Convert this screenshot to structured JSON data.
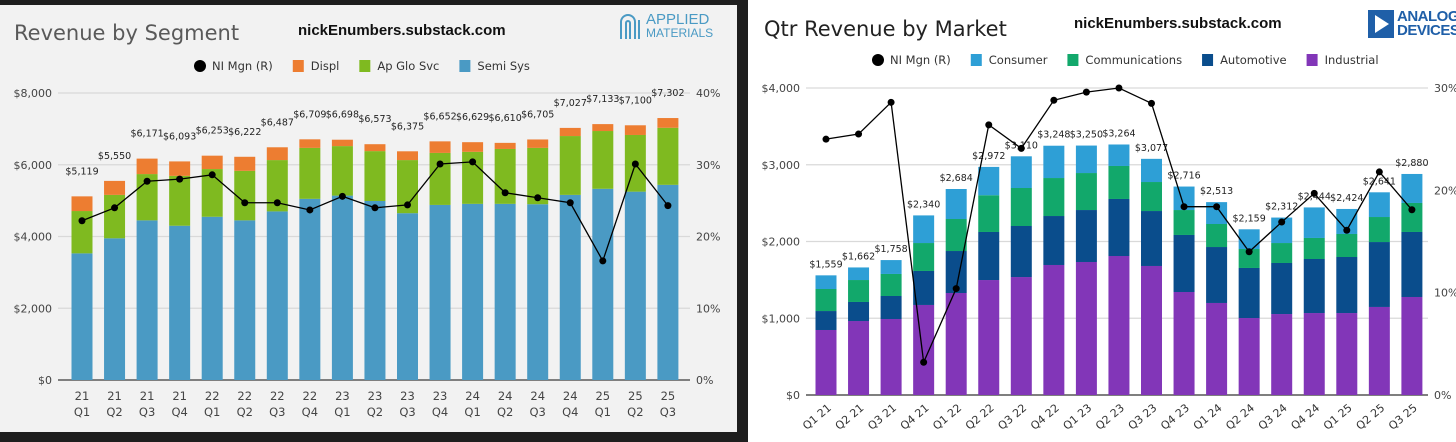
{
  "chart_data": [
    {
      "type": "bar",
      "stacked": true,
      "title": "Revenue by Segment",
      "watermark": "nickEnumbers.substack.com",
      "logo": "APPLIED MATERIALS",
      "categories": [
        "21 Q1",
        "21 Q2",
        "21 Q3",
        "21 Q4",
        "22 Q1",
        "22 Q2",
        "22 Q3",
        "22 Q4",
        "23 Q1",
        "23 Q2",
        "23 Q3",
        "23 Q4",
        "24 Q1",
        "24 Q2",
        "24 Q3",
        "24 Q4",
        "25 Q1",
        "25 Q2",
        "25 Q3"
      ],
      "series": [
        {
          "name": "Semi Sys",
          "color": "#4a9ac4",
          "values": [
            3530,
            3950,
            4450,
            4300,
            4550,
            4450,
            4700,
            5050,
            5140,
            4990,
            4650,
            4880,
            4910,
            4910,
            4900,
            5160,
            5330,
            5250,
            5440
          ]
        },
        {
          "name": "Ap Glo Svc",
          "color": "#7fba20",
          "values": [
            1180,
            1210,
            1290,
            1390,
            1330,
            1380,
            1430,
            1420,
            1380,
            1390,
            1480,
            1450,
            1450,
            1530,
            1570,
            1640,
            1610,
            1580,
            1590
          ]
        },
        {
          "name": "Displ",
          "color": "#ed7d31",
          "values": [
            409,
            390,
            431,
            403,
            373,
            392,
            357,
            239,
            178,
            193,
            245,
            322,
            269,
            170,
            235,
            227,
            193,
            270,
            272
          ]
        }
      ],
      "totals": [
        "$5,119",
        "$5,550",
        "$6,171",
        "$6,093",
        "$6,253",
        "$6,222",
        "$6,487",
        "$6,709",
        "$6,698",
        "$6,573",
        "$6,375",
        "$6,652",
        "$6,629",
        "$6,610",
        "$6,705",
        "$7,027",
        "$7,133",
        "$7,100",
        "$7,302"
      ],
      "total_values": [
        5119,
        5550,
        6171,
        6093,
        6253,
        6222,
        6487,
        6709,
        6698,
        6573,
        6375,
        6652,
        6629,
        6610,
        6705,
        7027,
        7133,
        7100,
        7302
      ],
      "line": {
        "name": "NI Mgn (R)",
        "color": "#000000",
        "values": [
          22.2,
          24.0,
          27.7,
          28.0,
          28.6,
          24.7,
          24.7,
          23.7,
          25.6,
          24.0,
          24.4,
          30.1,
          30.4,
          26.1,
          25.4,
          24.7,
          16.6,
          30.1,
          24.3
        ]
      },
      "legend_order": [
        "NI Mgn (R)",
        "Displ",
        "Ap Glo Svc",
        "Semi Sys"
      ],
      "ylim": [
        0,
        8000
      ],
      "yticks": [
        "$0",
        "$2,000",
        "$4,000",
        "$6,000",
        "$8,000"
      ],
      "y2lim": [
        0,
        40
      ],
      "y2ticks": [
        "0%",
        "10%",
        "20%",
        "30%",
        "40%"
      ],
      "grid": true,
      "legend": "top-center"
    },
    {
      "type": "bar",
      "stacked": true,
      "title": "Qtr Revenue by Market",
      "watermark": "nickEnumbers.substack.com",
      "logo": "ANALOG DEVICES",
      "categories": [
        "Q1 21",
        "Q2 21",
        "Q3 21",
        "Q4 21",
        "Q1 22",
        "Q2 22",
        "Q3 22",
        "Q4 22",
        "Q1 23",
        "Q2 23",
        "Q3 23",
        "Q4 23",
        "Q1 24",
        "Q2 24",
        "Q3 24",
        "Q4 24",
        "Q1 25",
        "Q2 25",
        "Q3 25"
      ],
      "series": [
        {
          "name": "Industrial",
          "color": "#8236b8",
          "values": [
            847,
            964,
            990,
            1173,
            1329,
            1498,
            1537,
            1694,
            1733,
            1811,
            1681,
            1342,
            1199,
            1003,
            1055,
            1068,
            1068,
            1147,
            1277
          ]
        },
        {
          "name": "Automotive",
          "color": "#0a4d8c",
          "values": [
            247,
            248,
            300,
            443,
            547,
            626,
            665,
            638,
            677,
            743,
            716,
            743,
            729,
            652,
            665,
            704,
            730,
            846,
            847
          ]
        },
        {
          "name": "Communications",
          "color": "#12a86b",
          "values": [
            287,
            286,
            287,
            364,
            417,
            479,
            495,
            495,
            482,
            430,
            378,
            325,
            300,
            247,
            260,
            274,
            300,
            326,
            378
          ]
        },
        {
          "name": "Consumer",
          "color": "#2e9fd6",
          "values": [
            178,
            164,
            181,
            360,
            391,
            369,
            413,
            421,
            358,
            280,
            302,
            306,
            285,
            257,
            332,
            398,
            326,
            322,
            378
          ]
        }
      ],
      "totals": [
        "$1,559",
        "$1,662",
        "$1,758",
        "$2,340",
        "$2,684",
        "$2,972",
        "$3,110",
        "$3,248",
        "$3,250",
        "$3,264",
        "$3,077",
        "$2,716",
        "$2,513",
        "$2,159",
        "$2,312",
        "$2,444",
        "$2,424",
        "$2,641",
        "$2,880"
      ],
      "total_values": [
        1559,
        1662,
        1758,
        2340,
        2684,
        2972,
        3110,
        3248,
        3250,
        3264,
        3077,
        2716,
        2513,
        2159,
        2312,
        2444,
        2424,
        2641,
        2880
      ],
      "line": {
        "name": "NI Mgn (R)",
        "color": "#000000",
        "values": [
          25.0,
          25.5,
          28.6,
          3.2,
          10.4,
          26.4,
          24.1,
          28.8,
          29.6,
          30.0,
          28.5,
          18.4,
          18.4,
          14.0,
          16.9,
          19.7,
          16.1,
          21.8,
          18.1
        ]
      },
      "legend_order": [
        "NI Mgn (R)",
        "Consumer",
        "Communications",
        "Automotive",
        "Industrial"
      ],
      "ylim": [
        0,
        4000
      ],
      "yticks": [
        "$0",
        "$1,000",
        "$2,000",
        "$3,000",
        "$4,000"
      ],
      "y2lim": [
        0,
        30
      ],
      "y2ticks": [
        "0%",
        "10%",
        "20%",
        "30%"
      ],
      "grid": true,
      "legend": "top-center"
    }
  ]
}
